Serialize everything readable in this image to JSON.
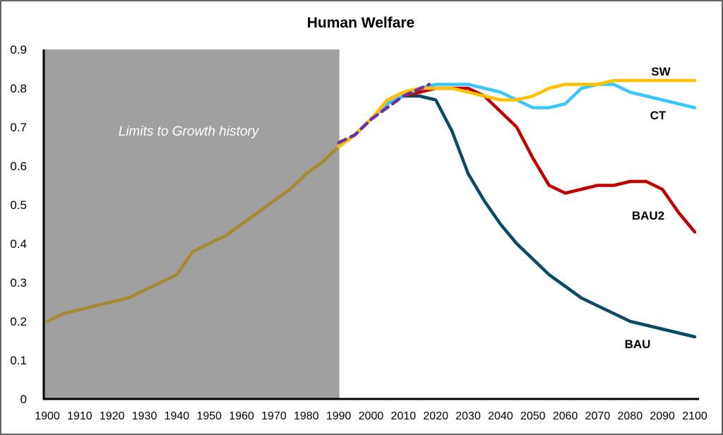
{
  "chart_data": {
    "type": "line",
    "title": "Human Welfare",
    "xlabel": "",
    "ylabel": "",
    "xlim": [
      1900,
      2100
    ],
    "ylim": [
      0,
      0.9
    ],
    "x_ticks": [
      "1900",
      "1910",
      "1920",
      "1930",
      "1940",
      "1950",
      "1960",
      "1970",
      "1980",
      "1990",
      "2000",
      "2010",
      "2020",
      "2030",
      "2040",
      "2050",
      "2060",
      "2070",
      "2080",
      "2090",
      "2100"
    ],
    "y_ticks": [
      "0",
      "0.1",
      "0.2",
      "0.3",
      "0.4",
      "0.5",
      "0.6",
      "0.7",
      "0.8",
      "0.9"
    ],
    "grid": false,
    "shaded_region": {
      "label": "Limits to Growth history",
      "x_range": [
        1900,
        1990
      ],
      "color": "#a0a0a0"
    },
    "history": {
      "color": "#a88a30",
      "x": [
        1900,
        1905,
        1910,
        1915,
        1920,
        1925,
        1930,
        1935,
        1940,
        1945,
        1950,
        1955,
        1960,
        1965,
        1970,
        1975,
        1980,
        1985,
        1990
      ],
      "y": [
        0.2,
        0.22,
        0.23,
        0.24,
        0.25,
        0.26,
        0.28,
        0.3,
        0.32,
        0.38,
        0.4,
        0.42,
        0.45,
        0.48,
        0.51,
        0.54,
        0.58,
        0.61,
        0.65
      ]
    },
    "observed_dashed": {
      "color": "#7030a0",
      "x": [
        1990,
        1995,
        2000,
        2005,
        2010,
        2018
      ],
      "y": [
        0.66,
        0.68,
        0.72,
        0.75,
        0.78,
        0.81
      ]
    },
    "x": [
      1990,
      1995,
      2000,
      2005,
      2010,
      2015,
      2020,
      2025,
      2030,
      2035,
      2040,
      2045,
      2050,
      2055,
      2060,
      2065,
      2070,
      2075,
      2080,
      2085,
      2090,
      2095,
      2100
    ],
    "series": [
      {
        "name": "BAU",
        "color": "#0b4a63",
        "values": [
          0.65,
          0.68,
          0.72,
          0.76,
          0.78,
          0.78,
          0.77,
          0.69,
          0.58,
          0.51,
          0.45,
          0.4,
          0.36,
          0.32,
          0.29,
          0.26,
          0.24,
          0.22,
          0.2,
          0.19,
          0.18,
          0.17,
          0.16
        ]
      },
      {
        "name": "BAU2",
        "color": "#c00000",
        "values": [
          0.65,
          0.68,
          0.72,
          0.76,
          0.78,
          0.79,
          0.8,
          0.8,
          0.8,
          0.78,
          0.74,
          0.7,
          0.62,
          0.55,
          0.53,
          0.54,
          0.55,
          0.55,
          0.56,
          0.56,
          0.54,
          0.48,
          0.43
        ]
      },
      {
        "name": "CT",
        "color": "#38c8f8",
        "values": [
          0.65,
          0.68,
          0.72,
          0.76,
          0.78,
          0.8,
          0.81,
          0.81,
          0.81,
          0.8,
          0.79,
          0.77,
          0.75,
          0.75,
          0.76,
          0.8,
          0.81,
          0.81,
          0.79,
          0.78,
          0.77,
          0.76,
          0.75
        ]
      },
      {
        "name": "SW",
        "color": "#ffc000",
        "values": [
          0.65,
          0.68,
          0.72,
          0.77,
          0.79,
          0.8,
          0.8,
          0.8,
          0.79,
          0.78,
          0.77,
          0.77,
          0.78,
          0.8,
          0.81,
          0.81,
          0.81,
          0.82,
          0.82,
          0.82,
          0.82,
          0.82,
          0.82
        ]
      }
    ]
  }
}
